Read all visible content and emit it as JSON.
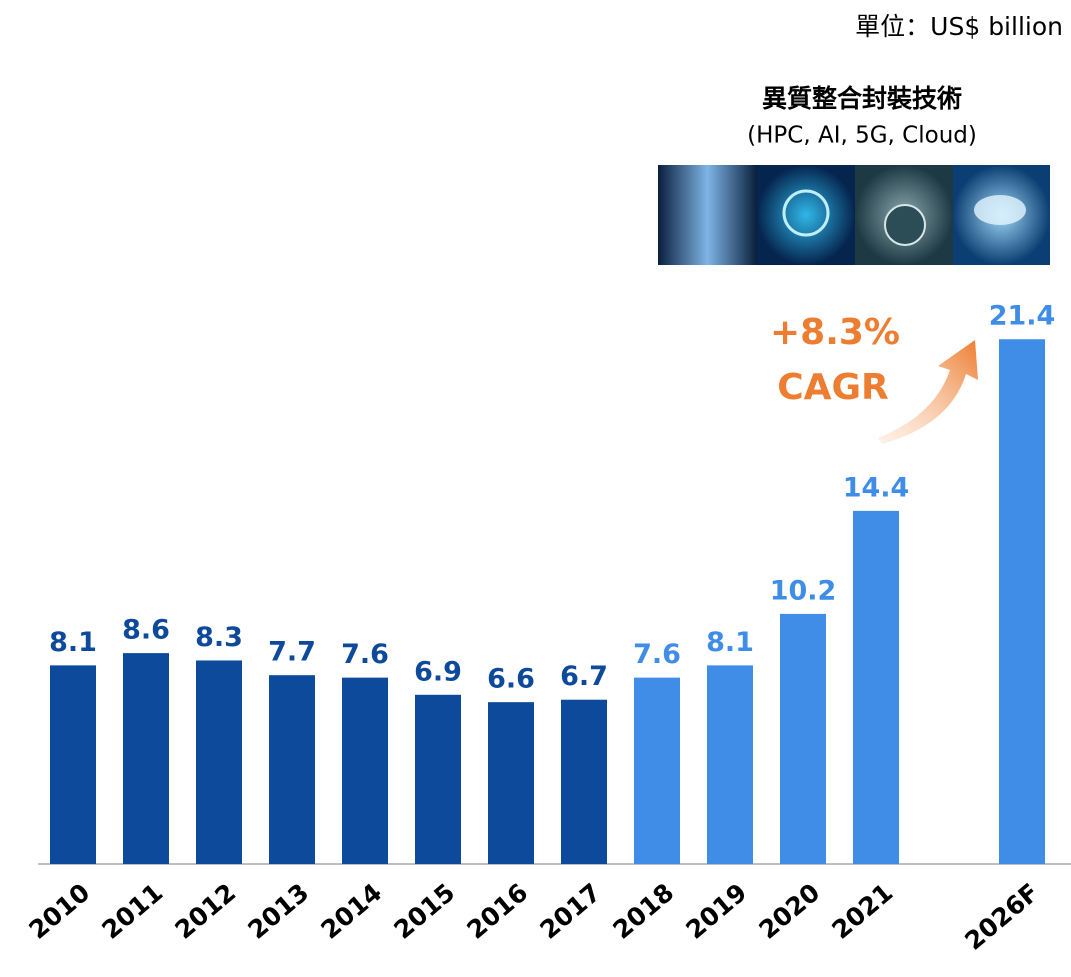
{
  "chart_data": {
    "type": "bar",
    "unit_label": "單位：US$ billion",
    "annotation_title": "異質整合封裝技術",
    "annotation_subtitle": "(HPC, AI, 5G, Cloud)",
    "growth_label": "+8.3%",
    "growth_note": "CAGR",
    "categories": [
      "2010",
      "2011",
      "2012",
      "2013",
      "2014",
      "2015",
      "2016",
      "2017",
      "2018",
      "2019",
      "2020",
      "2021",
      "2026F"
    ],
    "values": [
      8.1,
      8.6,
      8.3,
      7.7,
      7.6,
      6.9,
      6.6,
      6.7,
      7.6,
      8.1,
      10.2,
      14.4,
      21.4
    ],
    "colors": [
      "#0d4a9b",
      "#0d4a9b",
      "#0d4a9b",
      "#0d4a9b",
      "#0d4a9b",
      "#0d4a9b",
      "#0d4a9b",
      "#0d4a9b",
      "#3f8de6",
      "#3f8de6",
      "#3f8de6",
      "#3f8de6",
      "#3f8de6"
    ],
    "growth_color": "#ed7d31",
    "ylim": [
      0,
      23
    ]
  }
}
